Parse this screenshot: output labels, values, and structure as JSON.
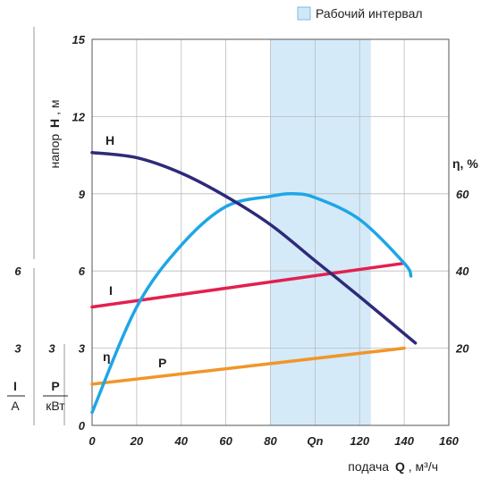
{
  "legend": {
    "label": "Рабочий интервал",
    "color": "#cfe8f8"
  },
  "axes": {
    "head_label_prefix": "напор",
    "head_symbol": "H",
    "head_unit": ", м",
    "eff_label": "η, %",
    "x_label_prefix": "подача",
    "x_symbol": "Q",
    "x_unit": ", м³/ч",
    "current_symbol": "I",
    "current_unit": "A",
    "power_symbol": "P",
    "power_unit": "кВт",
    "qn_label": "Qn"
  },
  "chart_data": {
    "type": "line",
    "xlabel": "подача Q, м³/ч",
    "ylabel": "напор H, м",
    "y2label": "η, %",
    "xlim": [
      0,
      160
    ],
    "ylim": [
      0,
      15
    ],
    "y2lim": [
      0,
      100
    ],
    "x_ticks": [
      "0",
      "20",
      "40",
      "60",
      "80",
      "Qn",
      "120",
      "140",
      "160"
    ],
    "y_ticks": [
      "0",
      "3",
      "6",
      "9",
      "12",
      "15"
    ],
    "y2_ticks": [
      "20",
      "40",
      "60"
    ],
    "current_ticks": [
      "3",
      "6"
    ],
    "power_ticks": [
      "3"
    ],
    "working_interval": [
      80,
      125
    ],
    "grid": true,
    "series": [
      {
        "name": "H",
        "color": "#2e2a7a",
        "x": [
          0,
          20,
          40,
          60,
          80,
          100,
          120,
          145
        ],
        "y": [
          10.6,
          10.4,
          9.8,
          8.9,
          7.8,
          6.4,
          5.0,
          3.2
        ]
      },
      {
        "name": "η",
        "color": "#1ea6e6",
        "x": [
          0,
          20,
          40,
          60,
          80,
          90,
          100,
          120,
          140,
          143
        ],
        "y": [
          0.5,
          4.6,
          7.0,
          8.5,
          8.9,
          9.0,
          8.85,
          8.0,
          6.3,
          5.8
        ]
      },
      {
        "name": "I",
        "color": "#e3204f",
        "x": [
          0,
          140
        ],
        "y": [
          4.6,
          6.3
        ]
      },
      {
        "name": "P",
        "color": "#f0962a",
        "x": [
          0,
          140
        ],
        "y": [
          1.6,
          3.0
        ]
      }
    ]
  }
}
